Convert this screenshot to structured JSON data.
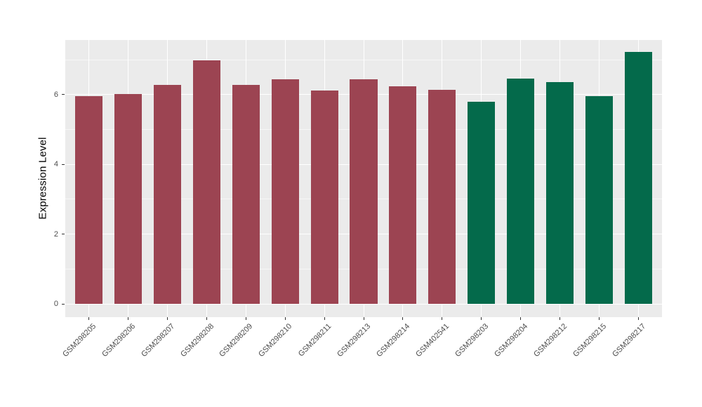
{
  "chart_data": {
    "type": "bar",
    "title": "",
    "xlabel": "",
    "ylabel": "Expression Level",
    "categories": [
      "GSM298205",
      "GSM298206",
      "GSM298207",
      "GSM298208",
      "GSM298209",
      "GSM298210",
      "GSM298211",
      "GSM298213",
      "GSM298214",
      "GSM402541",
      "GSM298203",
      "GSM298204",
      "GSM298212",
      "GSM298215",
      "GSM298217"
    ],
    "values": [
      5.95,
      6.02,
      6.29,
      6.98,
      6.29,
      6.44,
      6.12,
      6.45,
      6.24,
      6.15,
      5.8,
      6.47,
      6.36,
      5.95,
      7.23
    ],
    "groups": [
      "group1",
      "group1",
      "group1",
      "group1",
      "group1",
      "group1",
      "group1",
      "group1",
      "group1",
      "group1",
      "group2",
      "group2",
      "group2",
      "group2",
      "group2"
    ],
    "group_colors": {
      "group1": "#9C4452",
      "group2": "#046A4B"
    },
    "y_ticks": [
      0,
      2,
      4,
      6
    ],
    "y_minor_ticks": [
      1,
      3,
      5,
      7
    ],
    "ylim": [
      0,
      7.57
    ],
    "grid": "on",
    "legend": "none",
    "panel_background": "#EBEBEB",
    "gridline_color": "#FFFFFF"
  }
}
